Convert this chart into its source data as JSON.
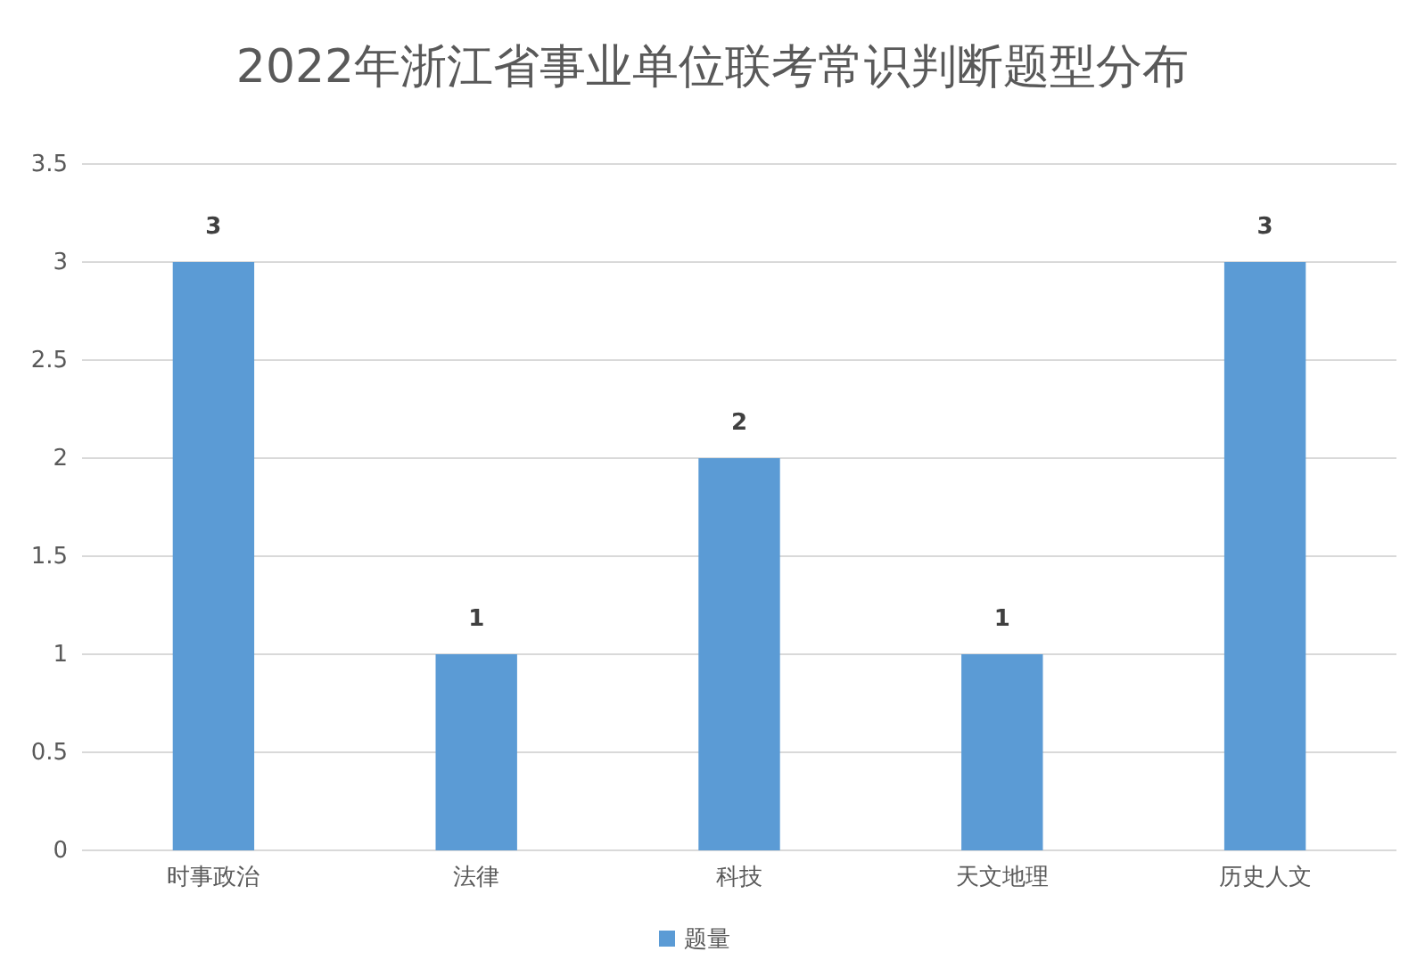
{
  "chart_data": {
    "type": "bar",
    "title": "2022年浙江省事业单位联考常识判断题型分布",
    "categories": [
      "时事政治",
      "法律",
      "科技",
      "天文地理",
      "历史人文"
    ],
    "series": [
      {
        "name": "题量",
        "color": "#5b9bd5",
        "values": [
          3,
          1,
          2,
          1,
          3
        ]
      }
    ],
    "ylim": [
      0,
      3.5
    ],
    "yticks": [
      0,
      0.5,
      1,
      1.5,
      2,
      2.5,
      3,
      3.5
    ],
    "grid": "y",
    "legend": "bottom",
    "data_labels": true
  }
}
